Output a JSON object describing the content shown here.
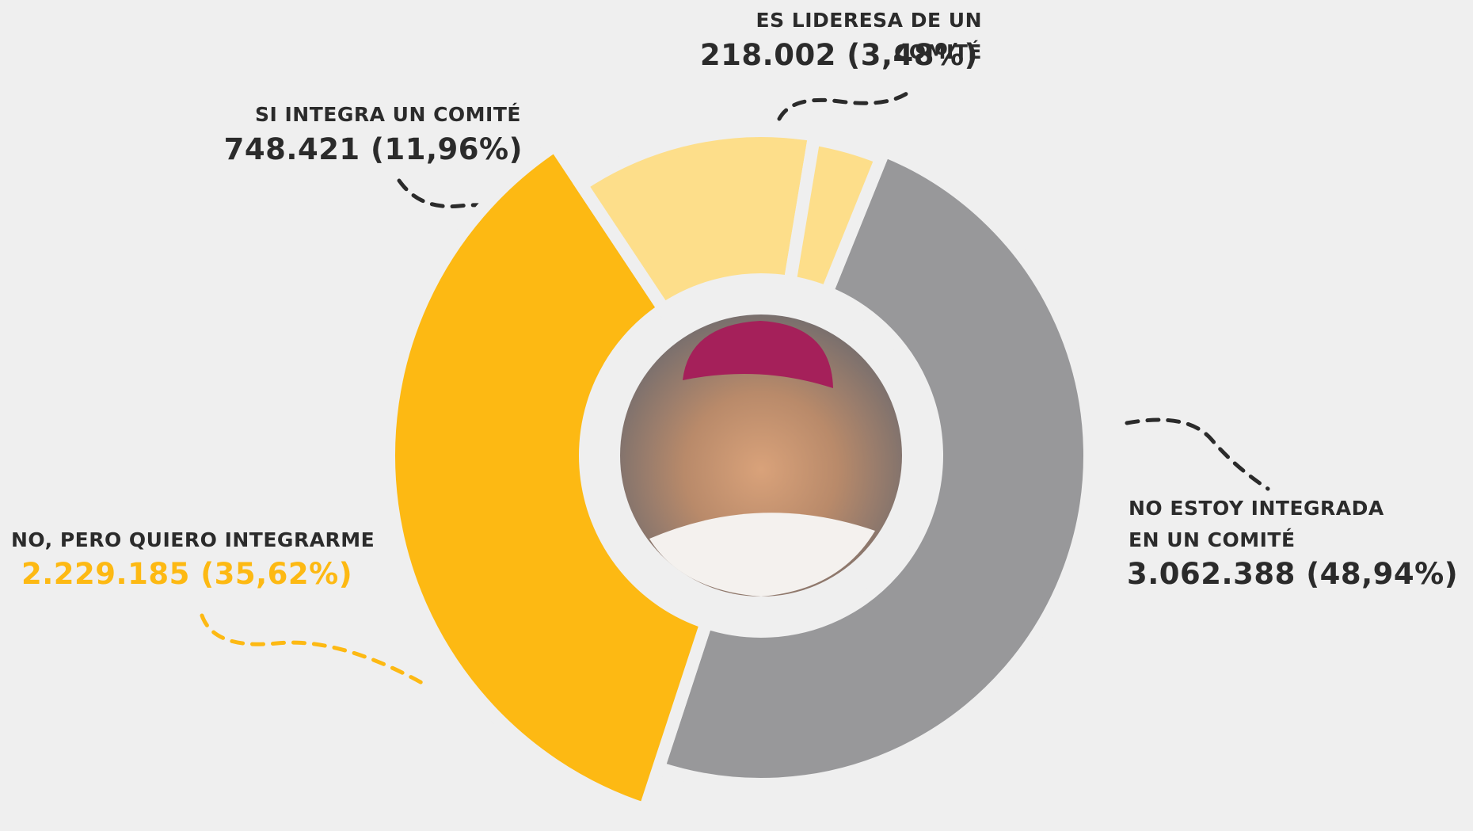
{
  "chart_data": {
    "type": "donut",
    "categories": [
      "NO ESTOY INTEGRADA EN UN COMITÉ",
      "NO, PERO QUIERO INTEGRARME",
      "SI INTEGRA UN COMITÉ",
      "ES LIDERESA DE UN COMITÉ"
    ],
    "values": [
      3062388,
      2229185,
      748421,
      218002
    ],
    "value_labels": [
      "3.062.388 (48,94%)",
      "2.229.185 (35,62%)",
      "748.421 (11,96%)",
      "218.002 (3,48%)"
    ],
    "colors": [
      "#98989a",
      "#fdb913",
      "#fdde8a",
      "#fdde8a"
    ]
  }
}
